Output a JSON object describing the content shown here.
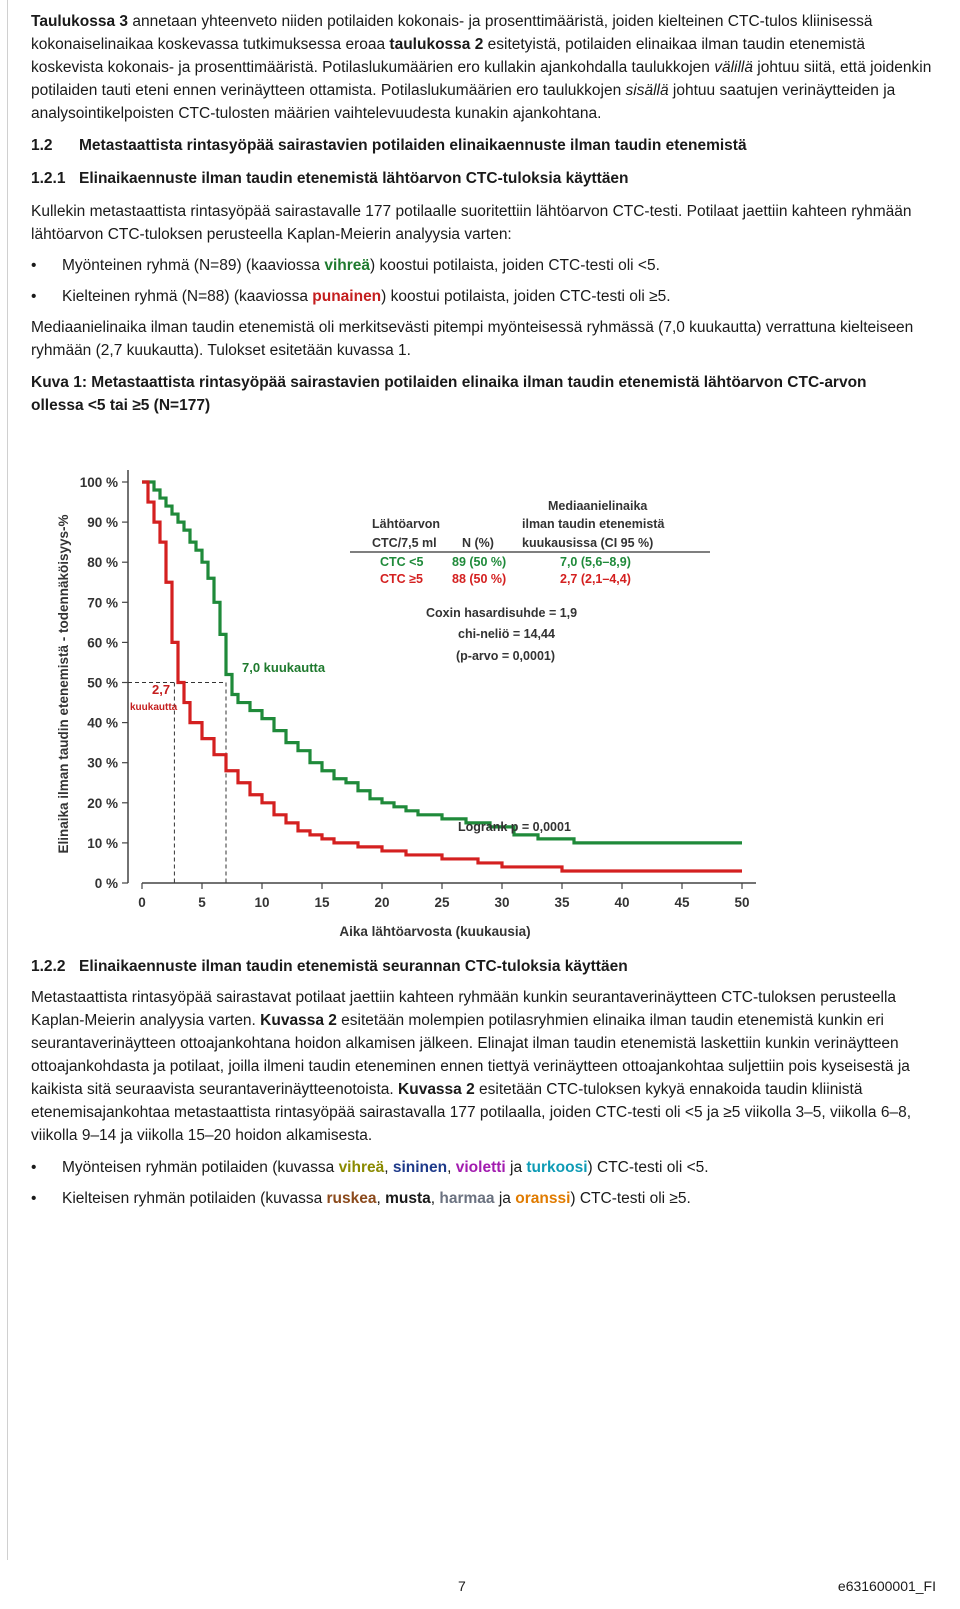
{
  "para1": {
    "t1": "Taulukossa 3",
    "t2": " annetaan yhteenveto niiden potilaiden kokonais- ja prosenttimääristä, joiden kielteinen CTC-tulos kliinisessä kokonaiselinaikaa koskevassa tutkimuksessa eroaa ",
    "t3": "taulukossa 2",
    "t4": " esitetyistä, potilaiden elinaikaa ilman taudin etenemistä koskevista kokonais- ja prosenttimääristä. Potilaslukumäärien ero kullakin ajankohdalla taulukkojen ",
    "t5": "välillä",
    "t6": " johtuu siitä, että joidenkin potilaiden tauti eteni ennen verinäytteen ottamista. Potilaslukumäärien ero taulukkojen ",
    "t7": "sisällä",
    "t8": " johtuu saatujen verinäytteiden ja analysointikelpoisten CTC-tulosten määrien vaihtelevuudesta kunakin ajankohtana."
  },
  "h12": {
    "num": "1.2",
    "text": "Metastaattista rintasyöpää sairastavien potilaiden elinaikaennuste ilman taudin etenemistä"
  },
  "h121": {
    "num": "1.2.1",
    "text": "Elinaikaennuste ilman taudin etenemistä lähtöarvon CTC-tuloksia käyttäen"
  },
  "para2": "Kullekin metastaattista rintasyöpää sairastavalle 177 potilaalle suoritettiin lähtöarvon CTC-testi. Potilaat jaettiin kahteen ryhmään lähtöarvon CTC-tuloksen perusteella Kaplan-Meierin analyysia varten:",
  "bullet1": {
    "a": "Myönteinen ryhmä (N=89) (kaaviossa ",
    "b": "vihreä",
    "c": ") koostui potilaista, joiden CTC-testi oli <5."
  },
  "bullet2": {
    "a": "Kielteinen ryhmä (N=88) (kaaviossa ",
    "b": "punainen",
    "c": ") koostui potilaista, joiden CTC-testi oli ≥5."
  },
  "para3": "Mediaanielinaika ilman taudin etenemistä oli merkitsevästi pitempi myönteisessä ryhmässä (7,0 kuukautta) verrattuna kielteiseen ryhmään (2,7 kuukautta). Tulokset esitetään kuvassa 1.",
  "caption": "Kuva 1: Metastaattista rintasyöpää sairastavien potilaiden elinaika ilman taudin etenemistä lähtöarvon CTC-arvon ollessa <5 tai ≥5 (N=177)",
  "chart_data": {
    "type": "line",
    "xlabel": "Aika lähtöarvosta (kuukausia)",
    "ylabel": "Elinaika ilman taudin etenemistä - todennäköisyys-%",
    "xlim": [
      0,
      50
    ],
    "ylim": [
      0,
      100
    ],
    "x_ticks": [
      "0",
      "5",
      "10",
      "15",
      "20",
      "25",
      "30",
      "35",
      "40",
      "45",
      "50"
    ],
    "y_ticks": [
      "0 %",
      "10 %",
      "20 %",
      "30 %",
      "40 %",
      "50 %",
      "60 %",
      "70 %",
      "80 %",
      "90 %",
      "100 %"
    ],
    "grid": false,
    "series": [
      {
        "color": "#1f8a3a",
        "points": [
          [
            0,
            100
          ],
          [
            1,
            98
          ],
          [
            1.5,
            96
          ],
          [
            2,
            94
          ],
          [
            2.5,
            92
          ],
          [
            3,
            90
          ],
          [
            3.5,
            88
          ],
          [
            4,
            85
          ],
          [
            4.5,
            83
          ],
          [
            5,
            80
          ],
          [
            5.5,
            76
          ],
          [
            6,
            70
          ],
          [
            6.5,
            62
          ],
          [
            7,
            52
          ],
          [
            7.5,
            47
          ],
          [
            8,
            45
          ],
          [
            9,
            43
          ],
          [
            10,
            41
          ],
          [
            11,
            38
          ],
          [
            12,
            35
          ],
          [
            13,
            33
          ],
          [
            14,
            30
          ],
          [
            15,
            28
          ],
          [
            16,
            26
          ],
          [
            17,
            25
          ],
          [
            18,
            23
          ],
          [
            19,
            21
          ],
          [
            20,
            20
          ],
          [
            21,
            19
          ],
          [
            22,
            18
          ],
          [
            23,
            17
          ],
          [
            25,
            16
          ],
          [
            27,
            15
          ],
          [
            29,
            14
          ],
          [
            31,
            12
          ],
          [
            33,
            11
          ],
          [
            36,
            10
          ],
          [
            40,
            10
          ],
          [
            45,
            10
          ],
          [
            50,
            10
          ]
        ]
      },
      {
        "color": "#d42020",
        "points": [
          [
            0,
            100
          ],
          [
            0.5,
            95
          ],
          [
            1,
            90
          ],
          [
            1.5,
            85
          ],
          [
            2,
            75
          ],
          [
            2.5,
            60
          ],
          [
            3,
            50
          ],
          [
            3.5,
            45
          ],
          [
            4,
            40
          ],
          [
            5,
            36
          ],
          [
            6,
            32
          ],
          [
            7,
            28
          ],
          [
            8,
            25
          ],
          [
            9,
            22
          ],
          [
            10,
            20
          ],
          [
            11,
            17
          ],
          [
            12,
            15
          ],
          [
            13,
            13
          ],
          [
            14,
            12
          ],
          [
            15,
            11
          ],
          [
            16,
            10
          ],
          [
            18,
            9
          ],
          [
            20,
            8
          ],
          [
            22,
            7
          ],
          [
            25,
            6
          ],
          [
            28,
            5
          ],
          [
            30,
            4
          ],
          [
            35,
            3
          ],
          [
            40,
            3
          ],
          [
            45,
            3
          ],
          [
            50,
            3
          ]
        ]
      }
    ],
    "median_markers": [
      {
        "label": "7,0 kuukautta",
        "x": 7.0,
        "y": 50
      },
      {
        "label1": "2,7",
        "label2": "kuukautta",
        "x": 2.7,
        "y": 50
      }
    ],
    "legend": {
      "col1_header1": "Lähtöarvon",
      "col1_header2": "CTC/7,5 ml",
      "col2_header": "N (%)",
      "col3_header1": "Mediaanielinaika",
      "col3_header2": "ilman taudin etenemistä",
      "col3_header3": "kuukausissa (CI 95 %)",
      "rows": [
        {
          "group": "CTC <5",
          "n": "89 (50 %)",
          "median": "7,0 (5,6–8,9)"
        },
        {
          "group": "CTC ≥5",
          "n": "88 (50 %)",
          "median": "2,7 (2,1–4,4)"
        }
      ]
    },
    "stats": {
      "line1": "Coxin hasardisuhde = 1,9",
      "line2": "chi-neliö = 14,44",
      "line3": "(p-arvo = 0,0001)",
      "logrank": "Logrank p = 0,0001"
    }
  },
  "h122": {
    "num": "1.2.2",
    "text": "Elinaikaennuste ilman taudin etenemistä seurannan CTC-tuloksia käyttäen"
  },
  "para4": {
    "t1": "Metastaattista rintasyöpää sairastavat potilaat jaettiin kahteen ryhmään kunkin seurantaverinäytteen CTC-tuloksen perusteella Kaplan-Meierin analyysia varten. ",
    "t2": "Kuvassa 2",
    "t3": " esitetään molempien potilasryhmien elinaika ilman taudin etenemistä kunkin eri seurantaverinäytteen ottoajankohtana hoidon alkamisen jälkeen. Elinajat ilman taudin etenemistä laskettiin kunkin verinäytteen ottoajankohdasta ja potilaat, joilla ilmeni taudin eteneminen ennen tiettyä verinäytteen ottoajankohtaa suljettiin pois kyseisestä ja kaikista sitä seuraavista seurantaverinäytteenotoista. ",
    "t4": "Kuvassa 2",
    "t5": " esitetään CTC-tuloksen kykyä ennakoida taudin kliinistä etenemisajankohtaa metastaattista rintasyöpää sairastavalla 177 potilaalla, joiden CTC-testi oli <5 ja ≥5 viikolla 3–5, viikolla 6–8, viikolla 9–14 ja viikolla 15–20 hoidon alkamisesta."
  },
  "bullet3": {
    "a": "Myönteisen ryhmän potilaiden (kuvassa ",
    "c1": "vihreä",
    "s1": ", ",
    "c2": "sininen",
    "s2": ", ",
    "c3": "violetti",
    "s3": " ja ",
    "c4": "turkoosi",
    "e": ") CTC-testi oli <5."
  },
  "bullet4": {
    "a": "Kielteisen ryhmän potilaiden (kuvassa ",
    "c1": "ruskea",
    "s1": ", ",
    "c2": "musta",
    "s2": ", ",
    "c3": "harmaa",
    "s3": " ja ",
    "c4": "oranssi",
    "e": ") CTC-testi oli ≥5."
  },
  "footer": {
    "page": "7",
    "code": "e631600001_FI"
  }
}
